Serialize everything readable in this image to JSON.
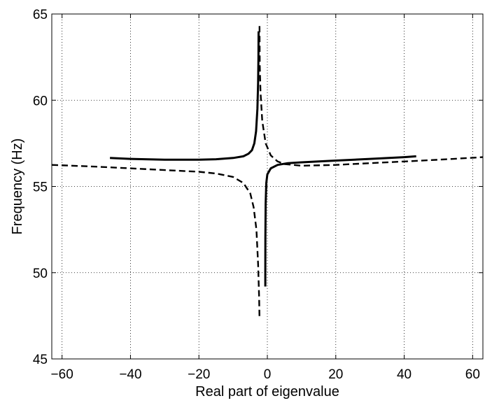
{
  "chart_data": {
    "type": "line",
    "title": "",
    "xlabel": "Real part of eigenvalue",
    "ylabel": "Frequency (Hz)",
    "xlim": [
      -63,
      63
    ],
    "ylim": [
      45,
      65
    ],
    "xticks": [
      -60,
      -40,
      -20,
      0,
      20,
      40,
      60
    ],
    "yticks": [
      45,
      50,
      55,
      60,
      65
    ],
    "xtick_labels": [
      "−60",
      "−40",
      "−20",
      "0",
      "20",
      "40",
      "60"
    ],
    "ytick_labels": [
      "45",
      "50",
      "55",
      "60",
      "65"
    ],
    "grid": true,
    "series": [
      {
        "style": "solid",
        "points": [
          [
            -46,
            56.65
          ],
          [
            -40,
            56.6
          ],
          [
            -30,
            56.55
          ],
          [
            -20,
            56.55
          ],
          [
            -15,
            56.58
          ],
          [
            -10,
            56.65
          ],
          [
            -7,
            56.75
          ],
          [
            -5.5,
            56.9
          ],
          [
            -4.5,
            57.1
          ],
          [
            -3.8,
            57.5
          ],
          [
            -3.3,
            58.2
          ],
          [
            -2.9,
            59.5
          ],
          [
            -2.7,
            61
          ],
          [
            -2.6,
            62.5
          ],
          [
            -2.55,
            64
          ]
        ]
      },
      {
        "style": "solid",
        "points": [
          [
            -0.6,
            49.2
          ],
          [
            -0.6,
            50
          ],
          [
            -0.58,
            52
          ],
          [
            -0.5,
            54
          ],
          [
            -0.3,
            55.2
          ],
          [
            0,
            55.7
          ],
          [
            1,
            56.05
          ],
          [
            3,
            56.25
          ],
          [
            6,
            56.35
          ],
          [
            10,
            56.4
          ],
          [
            20,
            56.5
          ],
          [
            30,
            56.6
          ],
          [
            40,
            56.7
          ],
          [
            43.5,
            56.75
          ]
        ]
      },
      {
        "style": "dashed",
        "points": [
          [
            -63,
            56.25
          ],
          [
            -50,
            56.15
          ],
          [
            -40,
            56.05
          ],
          [
            -30,
            55.95
          ],
          [
            -20,
            55.85
          ],
          [
            -15,
            55.75
          ],
          [
            -10,
            55.55
          ],
          [
            -7,
            55.2
          ],
          [
            -5,
            54.6
          ],
          [
            -4,
            53.8
          ],
          [
            -3.2,
            52.5
          ],
          [
            -2.7,
            50.5
          ],
          [
            -2.4,
            48.5
          ],
          [
            -2.3,
            47.3
          ]
        ]
      },
      {
        "style": "dashed",
        "points": [
          [
            -2.3,
            64.3
          ],
          [
            -2.2,
            62
          ],
          [
            -2,
            60.5
          ],
          [
            -1.5,
            58.8
          ],
          [
            -0.5,
            57.5
          ],
          [
            1,
            56.8
          ],
          [
            3,
            56.45
          ],
          [
            5,
            56.3
          ],
          [
            10,
            56.2
          ],
          [
            20,
            56.25
          ],
          [
            30,
            56.35
          ],
          [
            40,
            56.45
          ],
          [
            50,
            56.55
          ],
          [
            63,
            56.7
          ]
        ]
      }
    ]
  }
}
